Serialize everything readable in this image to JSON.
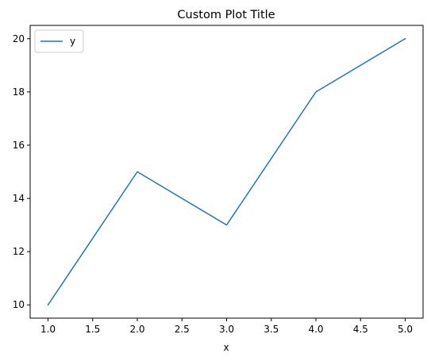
{
  "chart_data": {
    "type": "line",
    "title": "Custom Plot Title",
    "xlabel": "x",
    "ylabel": "",
    "x": [
      1.0,
      2.0,
      3.0,
      4.0,
      5.0
    ],
    "series": [
      {
        "name": "y",
        "values": [
          10,
          15,
          13,
          18,
          20
        ],
        "color": "#1f77b4"
      }
    ],
    "xlim": [
      0.8,
      5.2
    ],
    "ylim": [
      9.5,
      20.5
    ],
    "xticks": [
      "1.0",
      "1.5",
      "2.0",
      "2.5",
      "3.0",
      "3.5",
      "4.0",
      "4.5",
      "5.0"
    ],
    "yticks": [
      "10",
      "12",
      "14",
      "16",
      "18",
      "20"
    ],
    "grid": false,
    "legend_position": "upper-left"
  }
}
